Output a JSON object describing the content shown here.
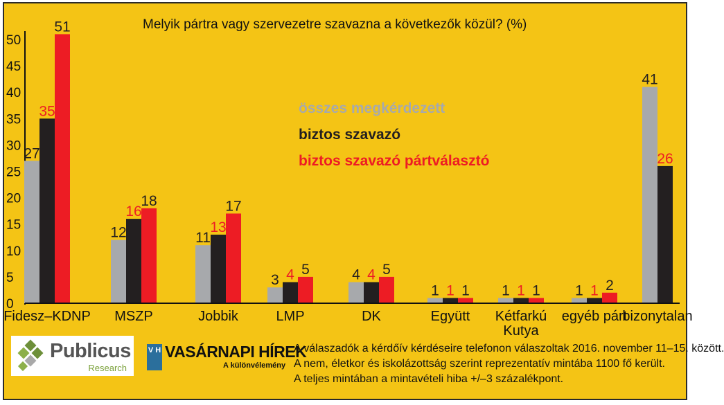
{
  "colors": {
    "background": "#f4c415",
    "series_total": "#a7a9ac",
    "series_sure": "#231f20",
    "series_party": "#ed1c24"
  },
  "chart_data": {
    "type": "bar",
    "title": "Melyik pártra vagy szervezetre szavazna a következők közül? (%)",
    "categories": [
      "Fidesz–KDNP",
      "MSZP",
      "Jobbik",
      "LMP",
      "DK",
      "Együtt",
      "Kétfarkú Kutya",
      "egyéb párt",
      "bizonytalan"
    ],
    "category_lines": [
      [
        "Fidesz–KDNP"
      ],
      [
        "MSZP"
      ],
      [
        "Jobbik"
      ],
      [
        "LMP"
      ],
      [
        "DK"
      ],
      [
        "Együtt"
      ],
      [
        "Kétfarkú",
        "Kutya"
      ],
      [
        "egyéb párt"
      ],
      [
        "bizonytalan"
      ]
    ],
    "series": [
      {
        "name": "összes megkérdezett",
        "values": [
          27,
          12,
          11,
          3,
          4,
          1,
          1,
          1,
          41
        ]
      },
      {
        "name": "biztos szavazó",
        "values": [
          35,
          16,
          13,
          4,
          4,
          1,
          1,
          1,
          26
        ]
      },
      {
        "name": "biztos szavazó pártválasztó",
        "values": [
          51,
          18,
          17,
          5,
          5,
          1,
          1,
          2,
          null
        ]
      }
    ],
    "ylim": [
      0,
      50
    ],
    "yticks": [
      0,
      5,
      10,
      15,
      20,
      25,
      30,
      35,
      40,
      45,
      50
    ],
    "xlabel": "",
    "ylabel": "",
    "grid": false,
    "legend_position": "center"
  },
  "logos": {
    "publicus_name": "Publicus",
    "publicus_sub": "Research",
    "vh_letters": "V H",
    "vh_name": "VASÁRNAPI HÍREK",
    "vh_sub": "A különvélemény"
  },
  "notes": [
    "A válaszadók a kérdőív kérdéseire telefonon válaszoltak 2016. november 11–15. között.",
    "A nem, életkor és iskolázottság szerint reprezentatív mintába 1100 fő került.",
    "A teljes mintában a mintavételi hiba +/–3 százalékpont."
  ]
}
